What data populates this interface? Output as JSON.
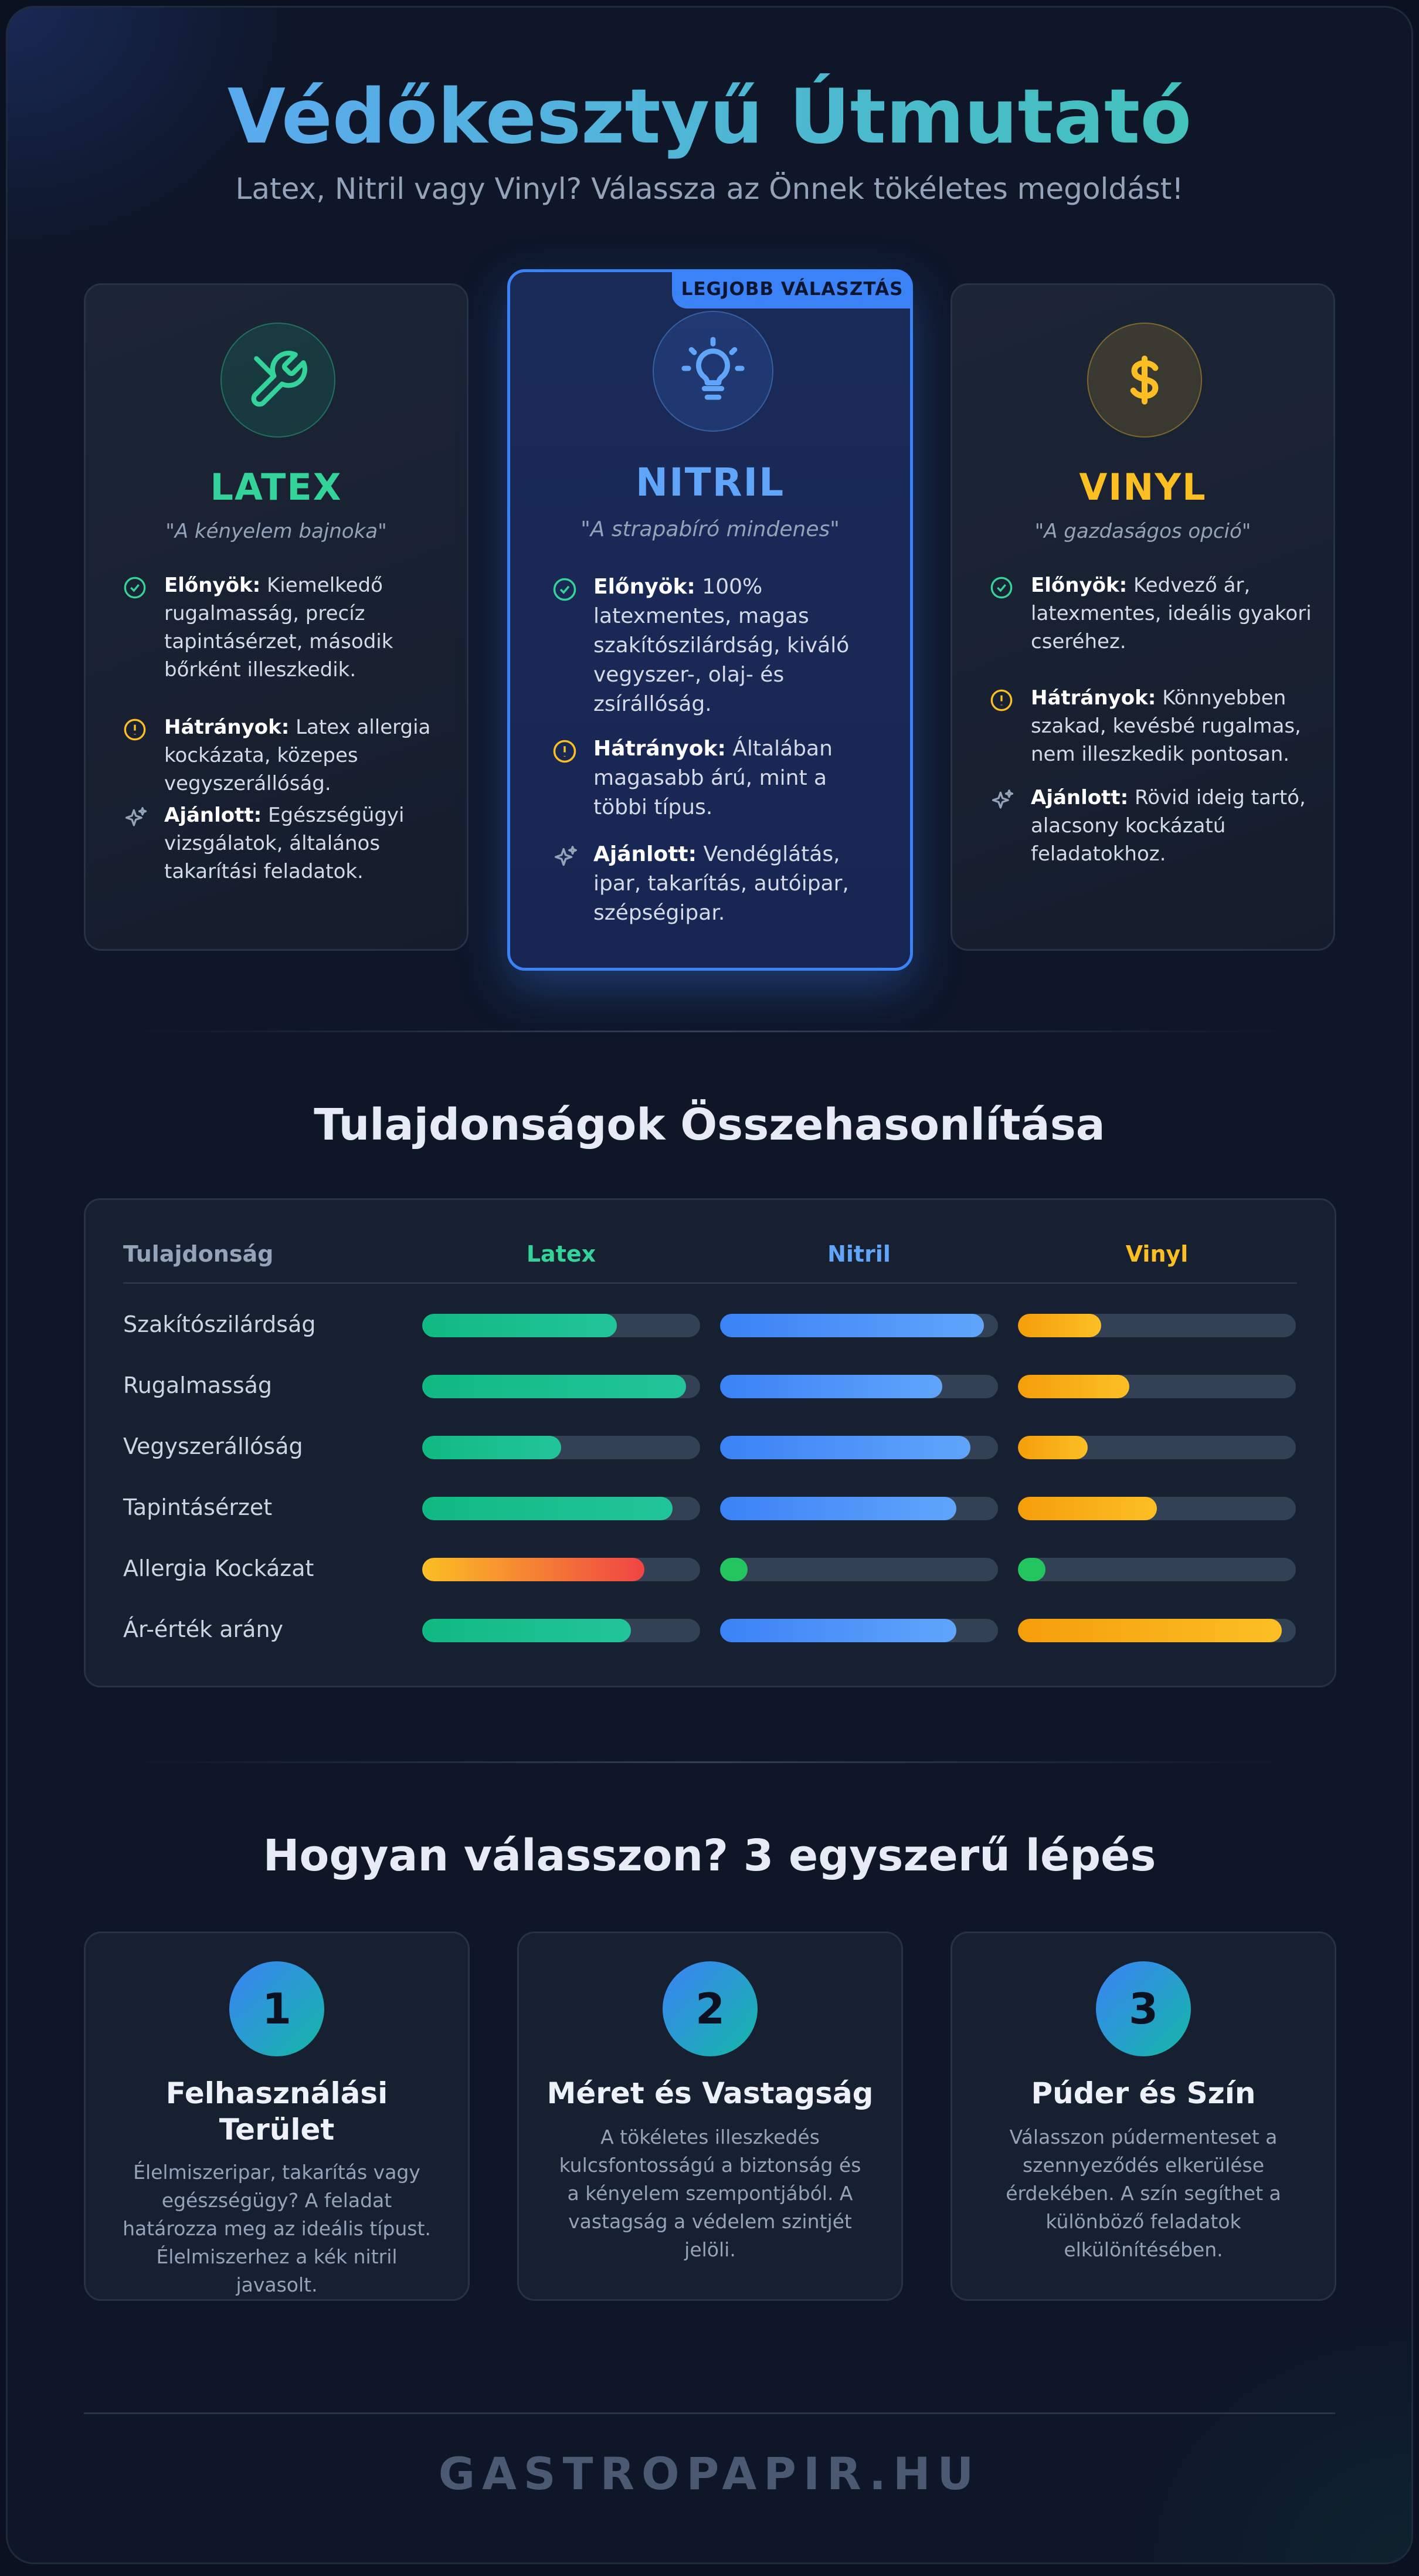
{
  "header": {
    "title": "Védőkesztyű Útmutató",
    "subtitle": "Latex, Nitril vagy Vinyl? Válassza az Önnek tökéletes megoldást!"
  },
  "cards": [
    {
      "name": "LATEX",
      "tagline": "\"A kényelem bajnoka\"",
      "color": "#34d399",
      "icon": "tool-icon",
      "pros_label": "Előnyök:",
      "pros": " Kiemelkedő rugalmasság, precíz tapintásérzet, második bőrként illeszkedik.",
      "cons_label": "Hátrányok:",
      "cons": " Latex allergia kockázata, közepes vegyszerállóság.",
      "rec_label": "Ajánlott:",
      "rec": " Egészségügyi vizsgálatok, általános takarítási feladatok."
    },
    {
      "name": "NITRIL",
      "tagline": "\"A strapabíró mindenes\"",
      "color": "#60a5fa",
      "icon": "lightbulb-icon",
      "badge": "LEGJOBB VÁLASZTÁS",
      "pros_label": "Előnyök:",
      "pros": " 100% latexmentes, magas szakítószilárdság, kiváló vegyszer-, olaj- és zsírállóság.",
      "cons_label": "Hátrányok:",
      "cons": " Általában magasabb árú, mint a többi típus.",
      "rec_label": "Ajánlott:",
      "rec": " Vendéglátás, ipar, takarítás, autóipar, szépségipar."
    },
    {
      "name": "VINYL",
      "tagline": "\"A gazdaságos opció\"",
      "color": "#fbbf24",
      "icon": "dollar-icon",
      "pros_label": "Előnyök:",
      "pros": " Kedvező ár, latexmentes, ideális gyakori cseréhez.",
      "cons_label": "Hátrányok:",
      "cons": " Könnyebben szakad, kevésbé rugalmas, nem illeszkedik pontosan.",
      "rec_label": "Ajánlott:",
      "rec": " Rövid ideig tartó, alacsony kockázatú feladatokhoz."
    }
  ],
  "comparison": {
    "title": "Tulajdonságok Összehasonlítása",
    "headers": [
      "Tulajdonság",
      "Latex",
      "Nitril",
      "Vinyl"
    ],
    "header_colors": [
      "#94a3b8",
      "#34d399",
      "#60a5fa",
      "#fbbf24"
    ],
    "rows": [
      {
        "label": "Szakítószilárdság",
        "values": [
          70,
          95,
          30
        ]
      },
      {
        "label": "Rugalmasság",
        "values": [
          95,
          80,
          40
        ]
      },
      {
        "label": "Vegyszerállóság",
        "values": [
          50,
          90,
          25
        ]
      },
      {
        "label": "Tapintásérzet",
        "values": [
          90,
          85,
          50
        ]
      },
      {
        "label": "Allergia Kockázat",
        "values": [
          80,
          10,
          10
        ]
      },
      {
        "label": "Ár-érték arány",
        "values": [
          75,
          85,
          95
        ]
      }
    ]
  },
  "steps": {
    "title": "Hogyan válasszon? 3 egyszerű lépés",
    "items": [
      {
        "number": "1",
        "title": "Felhasználási Terület",
        "text": "Élelmiszeripar, takarítás vagy egészségügy? A feladat határozza meg az ideális típust. Élelmiszerhez a kék nitril javasolt."
      },
      {
        "number": "2",
        "title": "Méret és Vastagság",
        "text": "A tökéletes illeszkedés kulcsfontosságú a biztonság és a kényelem szempontjából. A vastagság a védelem szintjét jelöli."
      },
      {
        "number": "3",
        "title": "Púder és Szín",
        "text": "Válasszon púdermenteset a szennyeződés elkerülése érdekében. A szín segíthet a különböző feladatok elkülönítésében."
      }
    ]
  },
  "footer": {
    "brand": "GASTROPAPIR.HU"
  }
}
